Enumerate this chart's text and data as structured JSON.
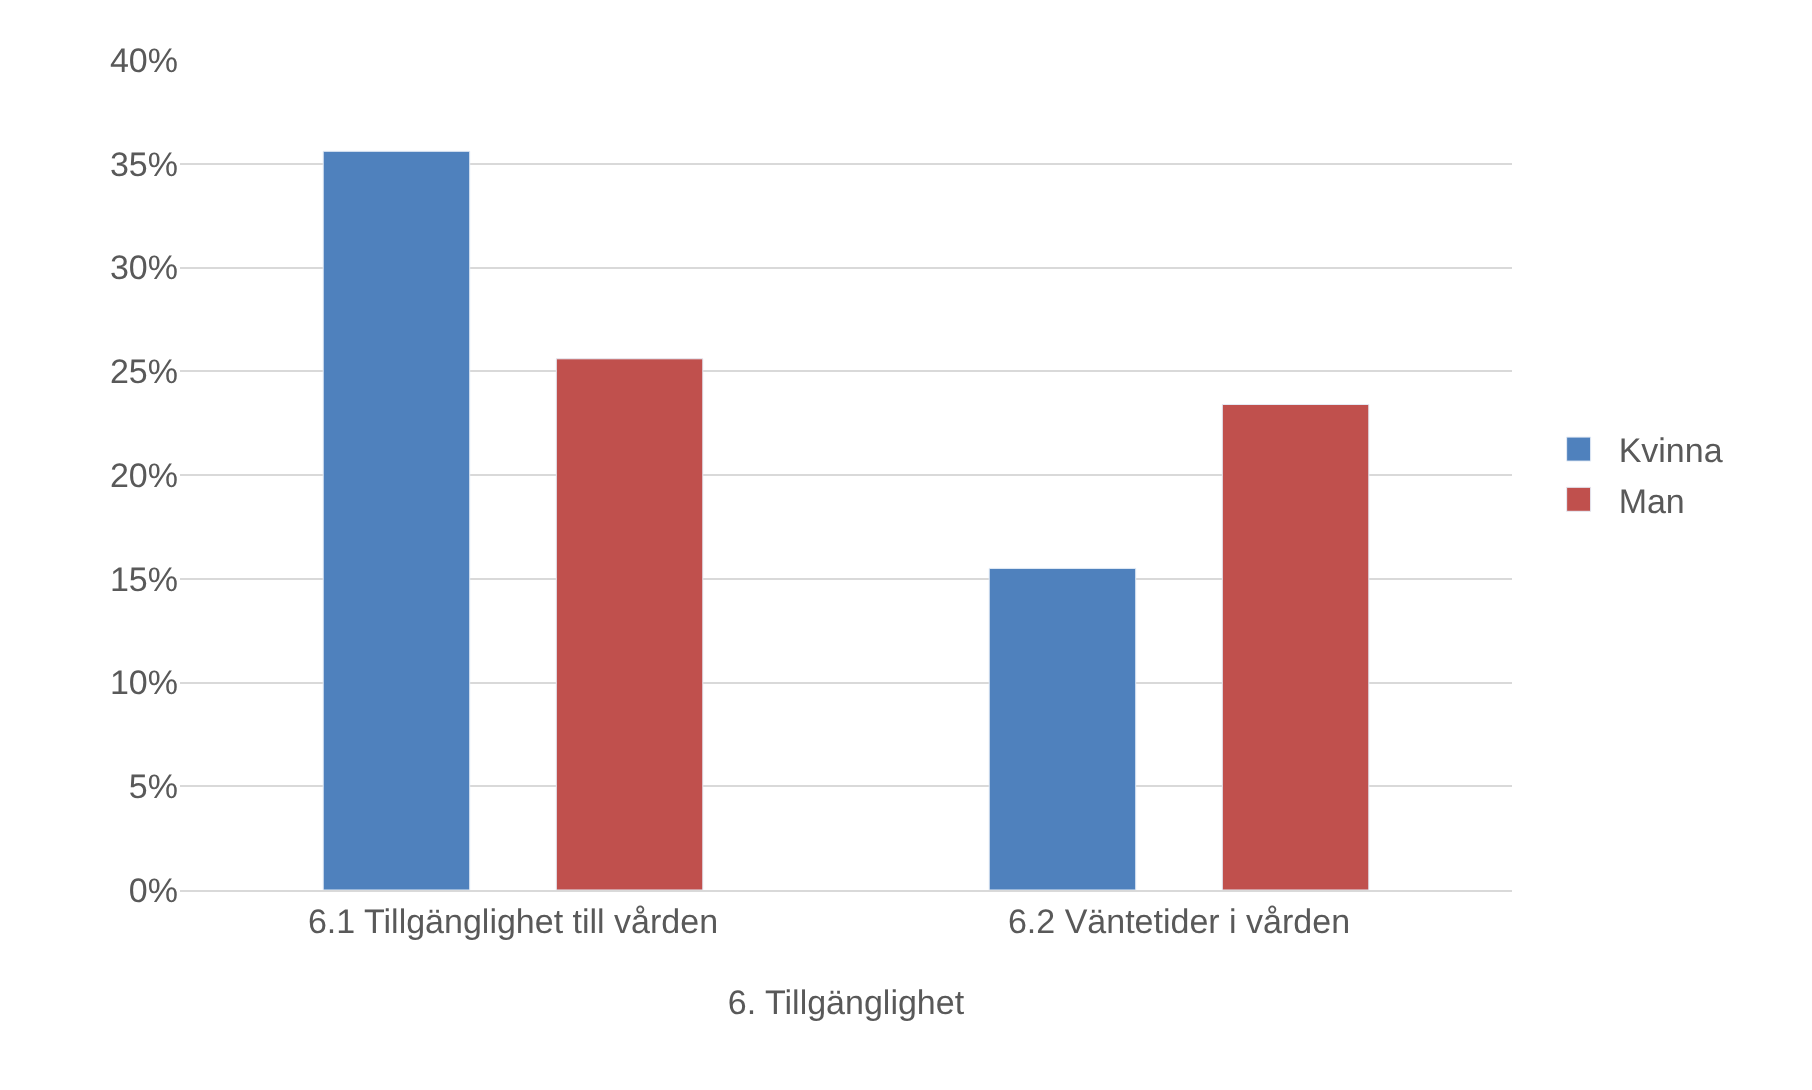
{
  "chart_data": {
    "type": "bar",
    "xlabel": "6. Tillgänglighet",
    "categories": [
      "6.1 Tillgänglighet till vården",
      "6.2 Väntetider i vården"
    ],
    "series": [
      {
        "name": "Kvinna",
        "color": "#4f81bd",
        "values": [
          35.6,
          15.5
        ]
      },
      {
        "name": "Man",
        "color": "#c0504d",
        "values": [
          25.6,
          23.4
        ]
      }
    ],
    "ylim": [
      0,
      40
    ],
    "yticks": [
      {
        "value": 0,
        "label": "0%"
      },
      {
        "value": 5,
        "label": "5%"
      },
      {
        "value": 10,
        "label": "10%"
      },
      {
        "value": 15,
        "label": "15%"
      },
      {
        "value": 20,
        "label": "20%"
      },
      {
        "value": 25,
        "label": "25%"
      },
      {
        "value": 30,
        "label": "30%"
      },
      {
        "value": 35,
        "label": "35%"
      },
      {
        "value": 40,
        "label": "40%"
      }
    ],
    "grid": "y",
    "legend": "right"
  }
}
